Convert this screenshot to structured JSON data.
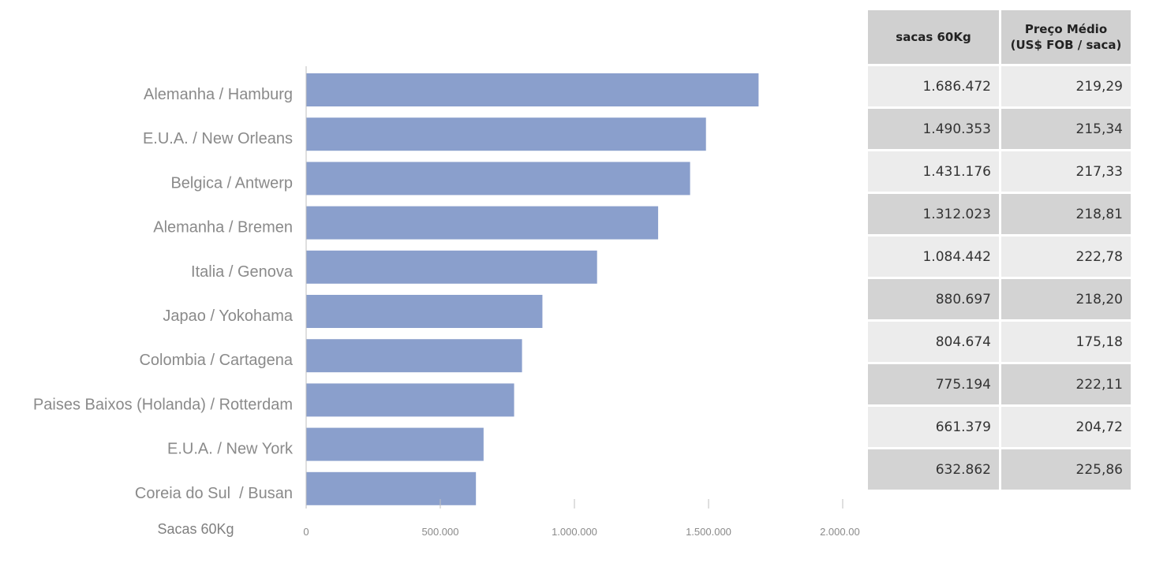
{
  "chart_data": {
    "type": "bar",
    "orientation": "horizontal",
    "categories": [
      "Alemanha / Hamburg",
      "E.U.A. / New Orleans",
      "Belgica / Antwerp",
      "Alemanha / Bremen",
      "Italia / Genova",
      "Japao / Yokohama",
      "Colombia / Cartagena",
      "Paises Baixos (Holanda) / Rotterdam",
      "E.U.A. / New York",
      "Coreia do Sul  / Busan"
    ],
    "values": [
      1686472,
      1490353,
      1431176,
      1312023,
      1084442,
      880697,
      804674,
      775194,
      661379,
      632862
    ],
    "xlabel": "Sacas 60Kg",
    "xlim": [
      0,
      2000000
    ],
    "xticks": [
      0,
      500000,
      1000000,
      1500000,
      2000000
    ],
    "xtick_labels": [
      "0",
      "500.000",
      "1.000.000",
      "1.500.000",
      "2.000.000"
    ],
    "grid": false,
    "bar_color": "#8a9fcc"
  },
  "table": {
    "headers": {
      "sacas": "sacas 60Kg",
      "preco_line1": "Preço Médio",
      "preco_line2": "(US$ FOB / saca)"
    },
    "rows": [
      {
        "sacas": "1.686.472",
        "preco": "219,29"
      },
      {
        "sacas": "1.490.353",
        "preco": "215,34"
      },
      {
        "sacas": "1.431.176",
        "preco": "217,33"
      },
      {
        "sacas": "1.312.023",
        "preco": "218,81"
      },
      {
        "sacas": "1.084.442",
        "preco": "222,78"
      },
      {
        "sacas": "880.697",
        "preco": "218,20"
      },
      {
        "sacas": "804.674",
        "preco": "175,18"
      },
      {
        "sacas": "775.194",
        "preco": "222,11"
      },
      {
        "sacas": "661.379",
        "preco": "204,72"
      },
      {
        "sacas": "632.862",
        "preco": "225,86"
      }
    ],
    "colors": {
      "header_bg": "#d0d0d0",
      "row_light": "#ececec",
      "row_dark": "#d3d3d3"
    }
  }
}
